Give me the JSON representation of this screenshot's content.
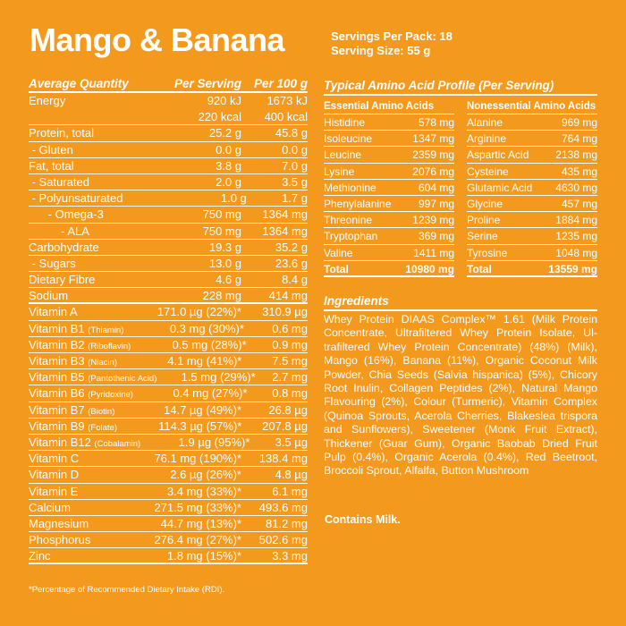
{
  "title": "Mango & Banana",
  "servings_per_pack": "Servings Per Pack: 18",
  "serving_size": "Serving Size: 55 g",
  "nutrition": {
    "headers": [
      "Average Quantity",
      "Per Serving",
      "Per 100 g"
    ],
    "rows": [
      {
        "label": "Energy",
        "sub": "",
        "serving": "920 kJ",
        "per100": "1673 kJ",
        "serving2": "220 kcal",
        "per100_2": "400 kcal"
      },
      {
        "label": "Protein, total",
        "sub": "",
        "serving": "25.2 g",
        "per100": "45.8 g"
      },
      {
        "label": " - Gluten",
        "sub": "",
        "serving": "0.0 g",
        "per100": "0.0 g"
      },
      {
        "label": "Fat, total",
        "sub": "",
        "serving": "3.8 g",
        "per100": "7.0 g"
      },
      {
        "label": " - Saturated",
        "sub": "",
        "serving": "2.0 g",
        "per100": "3.5 g"
      },
      {
        "label": " - Polyunsaturated",
        "sub": "",
        "serving": "1.0 g",
        "per100": "1.7 g"
      },
      {
        "label": "      - Omega-3",
        "sub": "",
        "serving": "750 mg",
        "per100": "1364 mg"
      },
      {
        "label": "          - ALA",
        "sub": "",
        "serving": "750 mg",
        "per100": "1364 mg"
      },
      {
        "label": "Carbohydrate",
        "sub": "",
        "serving": "19.3 g",
        "per100": "35.2 g"
      },
      {
        "label": " - Sugars",
        "sub": "",
        "serving": "13.0 g",
        "per100": "23.6 g"
      },
      {
        "label": "Dietary Fibre",
        "sub": "",
        "serving": "4.6 g",
        "per100": "8.4 g"
      },
      {
        "label": "Sodium",
        "sub": "",
        "serving": "228 mg",
        "per100": "414 mg"
      },
      {
        "label": "Vitamin A",
        "sub": "",
        "serving": "171.0 µg (22%)*",
        "per100": "310.9 µg"
      },
      {
        "label": "Vitamin B1",
        "sub": "(Thiamin)",
        "serving": "0.3 mg (30%)*",
        "per100": "0.6 mg"
      },
      {
        "label": "Vitamin B2",
        "sub": "(Riboflavin)",
        "serving": "0.5 mg (28%)*",
        "per100": "0.9 mg"
      },
      {
        "label": "Vitamin B3",
        "sub": "(Niacin)",
        "serving": "4.1 mg (41%)*",
        "per100": "7.5 mg"
      },
      {
        "label": "Vitamin B5",
        "sub": "(Pantothenic Acid)",
        "serving": "1.5 mg (29%)*",
        "per100": "2.7 mg"
      },
      {
        "label": "Vitamin B6",
        "sub": "(Pyridoxine)",
        "serving": "0.4 mg (27%)*",
        "per100": "0.8 mg"
      },
      {
        "label": "Vitamin B7",
        "sub": "(Biotin)",
        "serving": "14.7 µg (49%)*",
        "per100": "26.8 µg"
      },
      {
        "label": "Vitamin B9",
        "sub": "(Folate)",
        "serving": "114.3 µg (57%)*",
        "per100": "207.8 µg"
      },
      {
        "label": "Vitamin B12",
        "sub": "(Cobalamin)",
        "serving": "1.9 µg (95%)*",
        "per100": "3.5 µg"
      },
      {
        "label": "Vitamin C",
        "sub": "",
        "serving": "76.1 mg (190%)*",
        "per100": "138.4 mg"
      },
      {
        "label": "Vitamin D",
        "sub": "",
        "serving": "2.6 µg (26%)*",
        "per100": "4.8 µg"
      },
      {
        "label": "Vitamin E",
        "sub": "",
        "serving": "3.4 mg (33%)*",
        "per100": "6.1 mg"
      },
      {
        "label": "Calcium",
        "sub": "",
        "serving": "271.5 mg (33%)*",
        "per100": "493.6 mg"
      },
      {
        "label": "Magnesium",
        "sub": "",
        "serving": "44.7 mg (13%)*",
        "per100": "81.2 mg"
      },
      {
        "label": "Phosphorus",
        "sub": "",
        "serving": "276.4 mg (27%)*",
        "per100": "502.6 mg"
      },
      {
        "label": "Zinc",
        "sub": "",
        "serving": "1.8 mg (15%)*",
        "per100": "3.3 mg"
      }
    ],
    "footnote": "*Percentage of Recommended Dietary Intake (RDI)."
  },
  "amino": {
    "title": "Typical Amino Acid Profile (Per Serving)",
    "essential": {
      "header": "Essential Amino Acids",
      "rows": [
        [
          "Histidine",
          "578 mg"
        ],
        [
          "Isoleucine",
          "1347 mg"
        ],
        [
          "Leucine",
          "2359 mg"
        ],
        [
          "Lysine",
          "2076 mg"
        ],
        [
          "Methionine",
          "604 mg"
        ],
        [
          "Phenylalanine",
          "997 mg"
        ],
        [
          "Threonine",
          "1239 mg"
        ],
        [
          "Tryptophan",
          "369 mg"
        ],
        [
          "Valine",
          "1411 mg"
        ],
        [
          "Total",
          "10980 mg"
        ]
      ]
    },
    "nonessential": {
      "header": "Nonessential Amino Acids",
      "rows": [
        [
          "Alanine",
          "969 mg"
        ],
        [
          "Arginine",
          "764 mg"
        ],
        [
          "Aspartic Acid",
          "2138 mg"
        ],
        [
          "Cysteine",
          "435 mg"
        ],
        [
          "Glutamic Acid",
          "4630 mg"
        ],
        [
          "Glycine",
          "457 mg"
        ],
        [
          "Proline",
          "1884 mg"
        ],
        [
          "Serine",
          "1235 mg"
        ],
        [
          "Tyrosine",
          "1048 mg"
        ],
        [
          "Total",
          "13559 mg"
        ]
      ]
    }
  },
  "ingredients": {
    "title": "Ingredients",
    "text": "Whey Protein DIAAS Complex™ 1.61 (Milk Protein Concentrate, Ultrafiltered Whey Protein Isolate, Ul­trafiltered Whey Protein Concentrate) (48%) (Milk), Mango (16%), Banana (11%), Organic Coconut Milk Powder, Chia Seeds (Salvia hispanica) (5%), Chicory Root Inulin, Collagen Peptides (2%), Natu­ral Mango Flavouring (2%), Colour (Turmeric), Vita­min Complex (Quinoa Sprouts, Acerola Cherries, Blakeslea trispora and Sunflowers), Sweetener (Monk Fruit Extract), Thickener (Guar Gum), Organ­ic Baobab Dried Fruit Pulp (0.4%), Organic Acerola (0.4%), Red Beetroot, Broccoli Sprout, Alfalfa, Button Mushroom",
    "allergen": "Contains Milk."
  },
  "colors": {
    "background": "#F39A1E",
    "text": "#FFFFFF"
  }
}
